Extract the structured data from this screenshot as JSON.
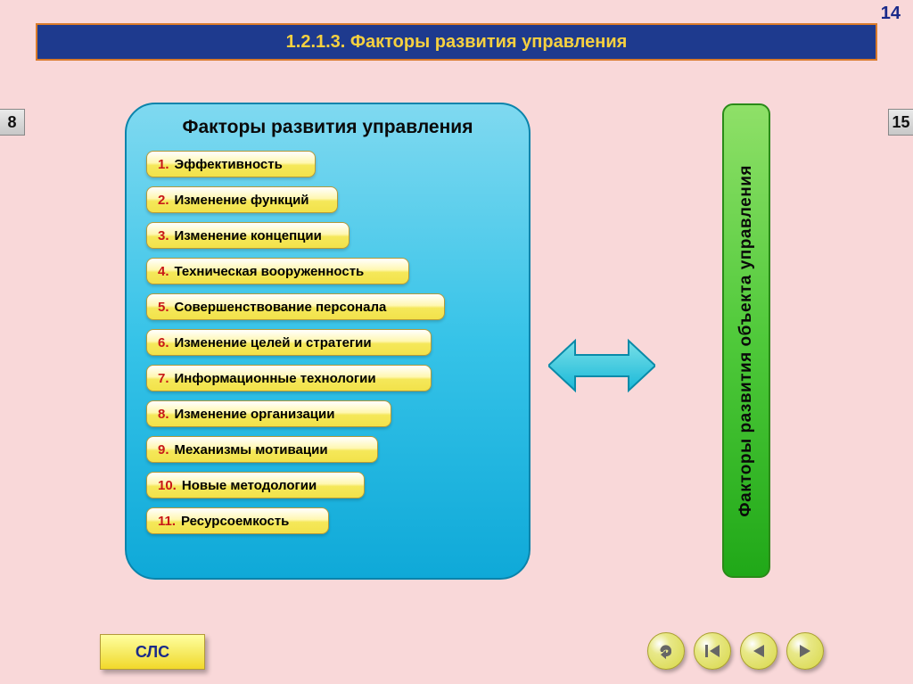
{
  "page_number": "14",
  "title": "1.2.1.3. Факторы развития управления",
  "nav_left_label": "8",
  "nav_right_label": "15",
  "main_panel": {
    "title": "Факторы развития управления",
    "bg_gradient": [
      "#7fd9f0",
      "#36c3e8",
      "#0fa9d8"
    ],
    "border_color": "#0a84ab",
    "items": [
      {
        "num": "1.",
        "text": "Эффективность",
        "w": "w1"
      },
      {
        "num": "2.",
        "text": "Изменение функций",
        "w": "w2"
      },
      {
        "num": "3.",
        "text": "Изменение концепции",
        "w": "w3"
      },
      {
        "num": "4.",
        "text": "Техническая вооруженность",
        "w": "w4"
      },
      {
        "num": "5.",
        "text": "Совершенствование персонала",
        "w": "w5"
      },
      {
        "num": "6.",
        "text": "Изменение целей и стратегии",
        "w": "w6"
      },
      {
        "num": "7.",
        "text": "Информационные технологии",
        "w": "w7"
      },
      {
        "num": "8.",
        "text": "Изменение организации",
        "w": "w8"
      },
      {
        "num": "9.",
        "text": "Механизмы мотивации",
        "w": "w9"
      },
      {
        "num": "10.",
        "text": "Новые методологии",
        "w": "w10"
      },
      {
        "num": "11.",
        "text": "Ресурсоемкость",
        "w": "w11"
      }
    ],
    "item_bg": [
      "#ffffff",
      "#fff7b0",
      "#f5e85a",
      "#f2e24a"
    ],
    "num_color": "#c81818"
  },
  "arrow": {
    "fill_gradient": [
      "#7ae0e8",
      "#18b8d8"
    ],
    "stroke": "#0a8aa8"
  },
  "side_panel": {
    "text": "Факторы развития объекта управления",
    "bg_gradient": [
      "#8fe068",
      "#4fc93a",
      "#20a818"
    ],
    "border_color": "#2a8a18"
  },
  "footer": {
    "sls_label": "СЛС",
    "nav_buttons": [
      "return",
      "first",
      "prev",
      "next"
    ]
  },
  "colors": {
    "page_bg": "#f9d8d9",
    "title_bg": "#1e3a8e",
    "title_border": "#d97a2a",
    "title_text": "#f5d040"
  }
}
